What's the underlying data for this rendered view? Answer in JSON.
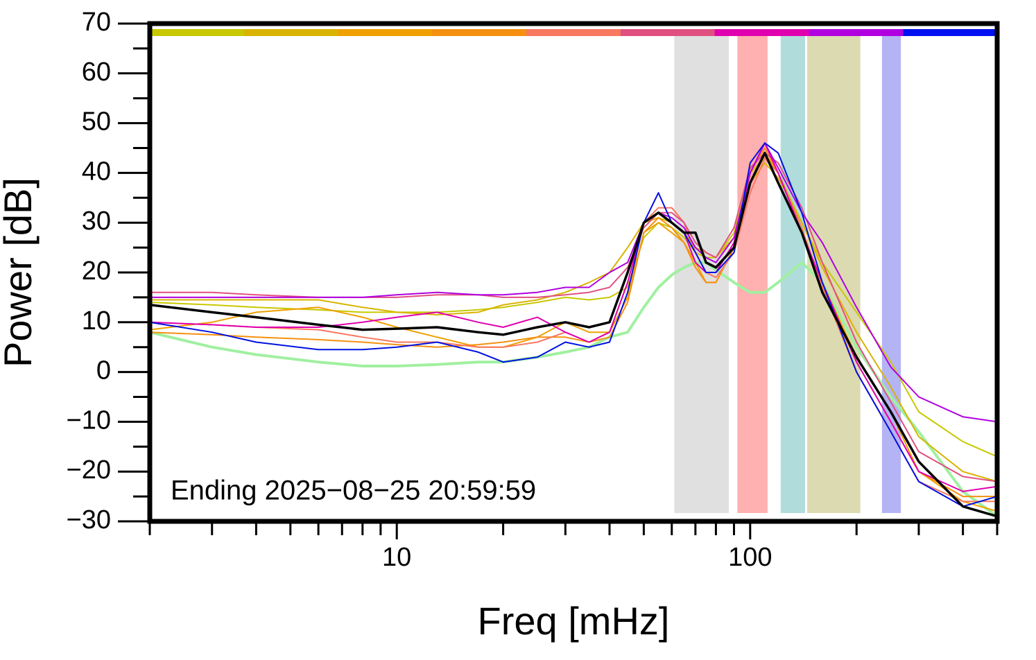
{
  "chart_data": {
    "type": "line",
    "xlabel": "Freq [mHz]",
    "ylabel": "Power [dB]",
    "annotation": "Ending 2025−08−25 20:59:59",
    "xscale": "log",
    "xlim": [
      2,
      500
    ],
    "ylim": [
      -30,
      70
    ],
    "xticks": [
      10,
      100
    ],
    "xminor_ticks": [
      2,
      3,
      4,
      5,
      6,
      7,
      8,
      9,
      20,
      30,
      40,
      50,
      60,
      70,
      80,
      90,
      200,
      300,
      400,
      500
    ],
    "yticks": [
      {
        "value": -30,
        "label": "−30"
      },
      {
        "value": -20,
        "label": "−20"
      },
      {
        "value": -10,
        "label": "−10"
      },
      0,
      10,
      20,
      30,
      40,
      50,
      60,
      70
    ],
    "yminor_ticks": [
      -25,
      -15,
      -5,
      5,
      15,
      25,
      35,
      45,
      55,
      65
    ],
    "color_bar": [
      "#c8c800",
      "#d8b400",
      "#f0a000",
      "#f59010",
      "#f87860",
      "#e05080",
      "#e000b0",
      "#b000e0",
      "#0010f0"
    ],
    "bands": [
      {
        "x": [
          61,
          87
        ],
        "color": "#e0e0e0"
      },
      {
        "x": [
          92,
          112
        ],
        "color": "#ffb0b0"
      },
      {
        "x": [
          122,
          143
        ],
        "color": "#b0dcdc"
      },
      {
        "x": [
          145,
          205
        ],
        "color": "#dcdab0"
      },
      {
        "x": [
          236,
          267
        ],
        "color": "#b4b4f4"
      }
    ],
    "x": [
      2,
      3,
      4,
      6,
      8,
      10,
      13,
      17,
      20,
      25,
      30,
      35,
      40,
      45,
      50,
      55,
      60,
      65,
      70,
      75,
      80,
      90,
      100,
      110,
      120,
      140,
      160,
      200,
      250,
      300,
      400,
      500
    ],
    "series": [
      {
        "color": "#a0f0a0",
        "width": 4,
        "values": [
          8,
          5,
          3.5,
          2,
          1.2,
          1.2,
          1.5,
          2,
          2,
          3,
          4,
          5,
          7,
          8,
          13,
          17,
          19.5,
          21,
          22,
          22,
          20.5,
          18,
          16,
          16,
          18,
          22,
          18,
          5,
          -5,
          -12,
          -24,
          -29
        ]
      },
      {
        "color": "#c8c800",
        "width": 2,
        "values": [
          14,
          13.5,
          13,
          12.5,
          12,
          12,
          12,
          12.5,
          13,
          14,
          15,
          14.5,
          15,
          17,
          27,
          30,
          29,
          27,
          24,
          23,
          23,
          28,
          40,
          43,
          40,
          30,
          22,
          12,
          2,
          -8,
          -14,
          -17
        ]
      },
      {
        "color": "#d8b400",
        "width": 2,
        "values": [
          14.5,
          14.5,
          14.5,
          14.5,
          13,
          12,
          11.5,
          12,
          13.5,
          14.5,
          16,
          18,
          20,
          25,
          30,
          31,
          30,
          28,
          25,
          24,
          23,
          27,
          38,
          42,
          39,
          30,
          21,
          8,
          -3,
          -13,
          -20,
          -22
        ]
      },
      {
        "color": "#f0a000",
        "width": 2,
        "values": [
          8.5,
          10,
          12,
          13,
          11,
          9,
          7,
          5,
          5,
          7,
          10,
          8,
          8,
          15,
          28,
          30,
          28,
          26,
          22,
          18,
          18,
          25,
          38,
          44,
          40,
          28,
          18,
          3,
          -8,
          -20,
          -26,
          -28
        ]
      },
      {
        "color": "#f59010",
        "width": 2,
        "values": [
          8,
          7.5,
          7,
          6.5,
          6,
          5.5,
          5,
          5.5,
          6,
          7,
          7,
          6,
          7,
          14,
          28,
          31,
          29,
          26,
          21,
          18,
          18,
          25,
          40,
          45,
          40,
          28,
          17,
          2,
          -10,
          -20,
          -25,
          -25
        ]
      },
      {
        "color": "#f87860",
        "width": 2,
        "values": [
          10,
          9.5,
          9,
          8.5,
          7,
          6,
          6,
          5,
          5,
          6,
          8,
          6,
          8,
          18,
          30,
          33,
          33,
          30,
          24,
          20,
          19,
          24,
          36,
          43,
          40,
          29,
          17,
          0,
          -12,
          -22,
          -26,
          -26
        ]
      },
      {
        "color": "#e05080",
        "width": 2,
        "values": [
          16,
          16,
          15.5,
          15,
          15,
          15,
          15.5,
          15.5,
          15,
          15,
          15.5,
          16,
          17,
          21,
          29,
          32,
          32,
          30,
          26,
          24,
          23,
          29,
          41,
          44,
          42,
          33,
          22,
          6,
          -6,
          -16,
          -21,
          -22
        ]
      },
      {
        "color": "#e000b0",
        "width": 2,
        "values": [
          10,
          9.5,
          9,
          9,
          10,
          11,
          12,
          10,
          9,
          11,
          8,
          6,
          8,
          18,
          30,
          32,
          30,
          28,
          22,
          20,
          20,
          26,
          40,
          46,
          40,
          28,
          18,
          2,
          -10,
          -20,
          -24,
          -23
        ]
      },
      {
        "color": "#b000e0",
        "width": 2,
        "values": [
          15,
          15,
          15,
          15,
          15,
          15.5,
          16,
          15.5,
          15.5,
          16,
          17,
          17,
          20,
          22,
          30,
          32,
          31,
          29,
          25,
          23,
          22,
          27,
          40,
          46,
          41,
          32,
          26,
          13,
          1,
          -5,
          -9,
          -10
        ]
      },
      {
        "color": "#0010e0",
        "width": 2,
        "values": [
          10,
          8,
          6,
          4.5,
          4.5,
          5,
          6,
          4,
          2,
          3,
          6,
          5,
          6,
          16,
          30,
          36,
          30,
          28,
          24,
          20,
          20,
          24,
          42,
          46,
          44,
          32,
          18,
          0,
          -12,
          -22,
          -27,
          -25
        ]
      },
      {
        "color": "#000000",
        "width": 3.5,
        "values": [
          13.5,
          12,
          11,
          9.5,
          8.5,
          8.7,
          9,
          8,
          7.5,
          9,
          10,
          9,
          10,
          20,
          30,
          32,
          30,
          28,
          28,
          22,
          21,
          25,
          38,
          44,
          38,
          28,
          16,
          3,
          -8,
          -18,
          -27,
          -29
        ]
      }
    ]
  }
}
